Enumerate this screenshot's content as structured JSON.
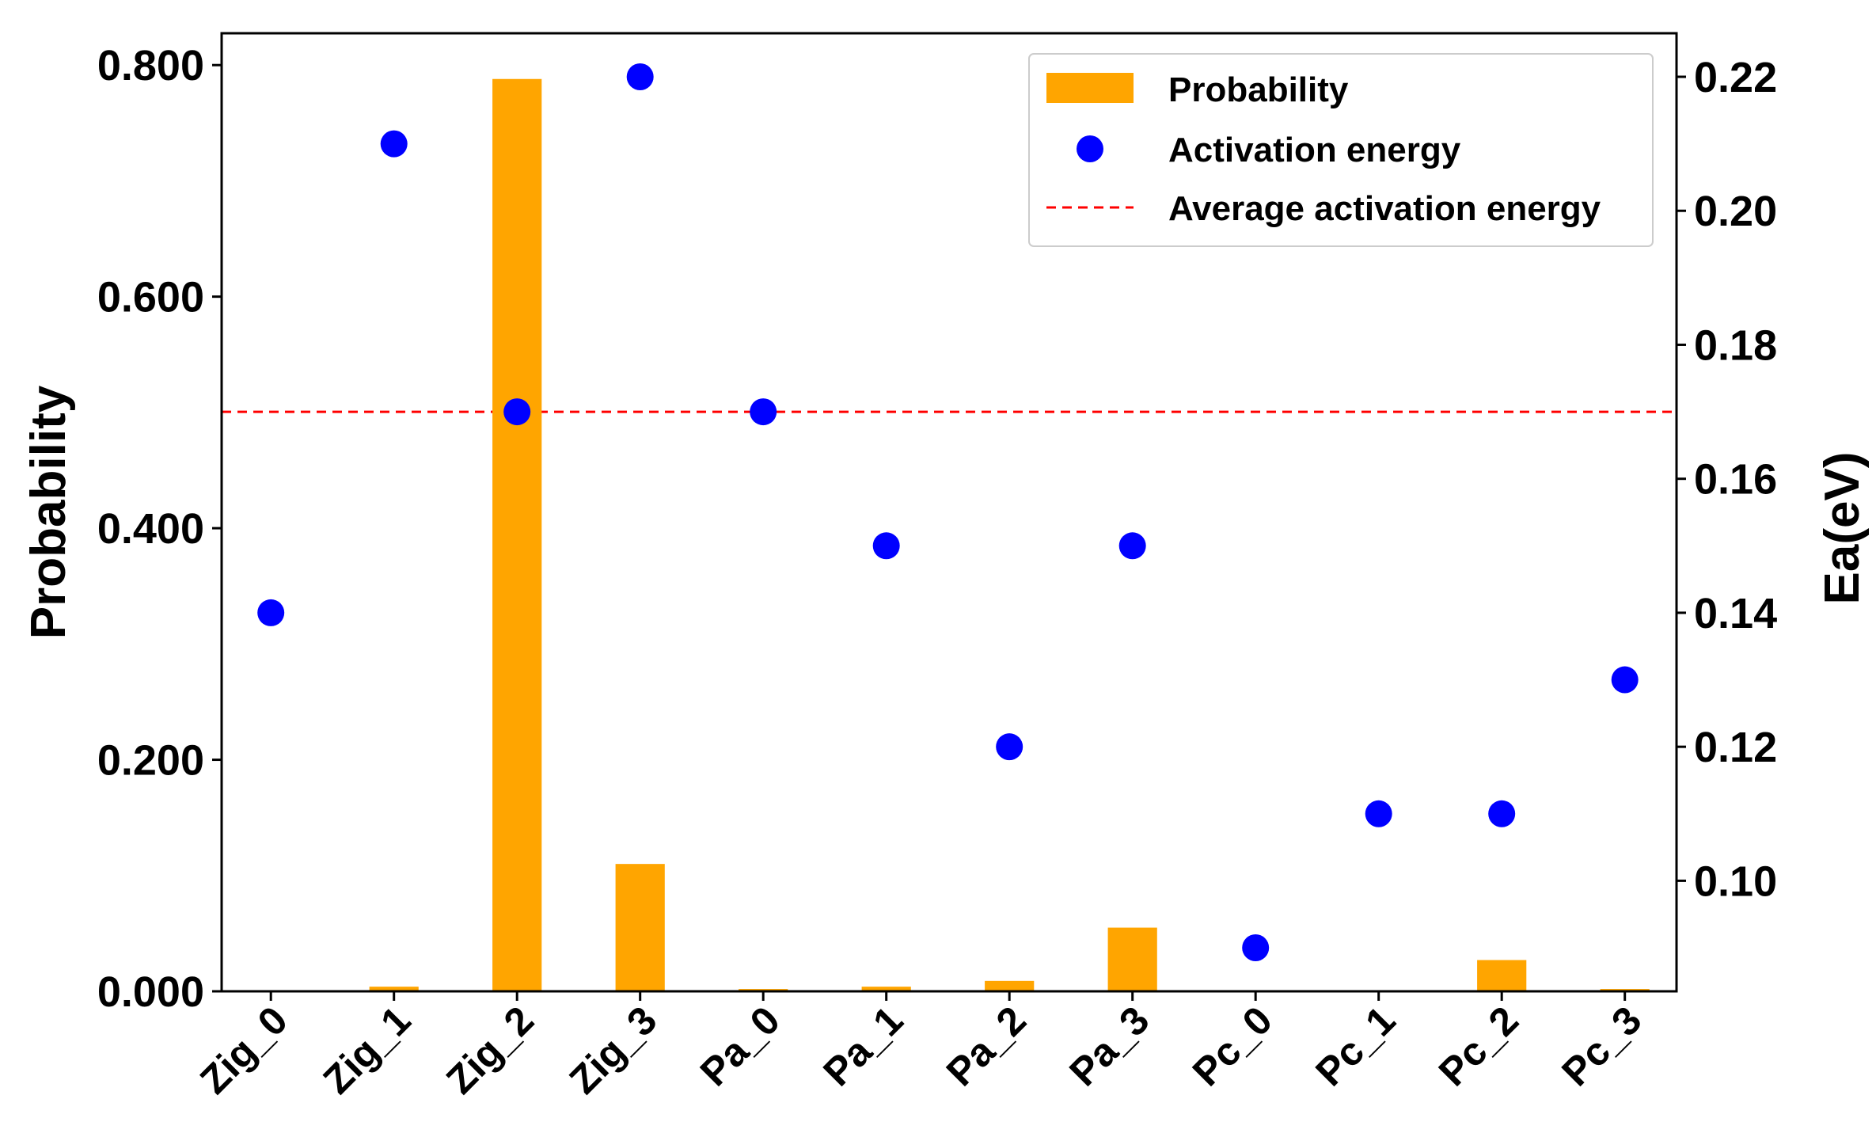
{
  "chart_data": {
    "type": "bar+scatter",
    "categories": [
      "Zig_0",
      "Zig_1",
      "Zig_2",
      "Zig_3",
      "Pa_0",
      "Pa_1",
      "Pa_2",
      "Pa_3",
      "Pc_0",
      "Pc_1",
      "Pc_2",
      "Pc_3"
    ],
    "series": [
      {
        "name": "Probability",
        "type": "bar",
        "axis": "left",
        "color": "#FFA500",
        "values": [
          0.0,
          0.004,
          0.788,
          0.11,
          0.002,
          0.004,
          0.009,
          0.055,
          0.0,
          0.0,
          0.027,
          0.002
        ]
      },
      {
        "name": "Activation energy",
        "type": "scatter",
        "axis": "right",
        "color": "#0000FF",
        "values": [
          0.14,
          0.21,
          0.17,
          0.22,
          0.17,
          0.15,
          0.12,
          0.15,
          0.09,
          0.11,
          0.11,
          0.13
        ]
      },
      {
        "name": "Average activation energy",
        "type": "hline",
        "axis": "right",
        "color": "#FF0000",
        "value": 0.17
      }
    ],
    "ylabel": "Probability",
    "y2label": "Ea(eV)",
    "ylim": [
      0,
      0.8275
    ],
    "y2lim": [
      0.0835,
      0.2265
    ],
    "yticks": [
      0.0,
      0.2,
      0.4,
      0.6,
      0.8
    ],
    "ytick_labels": [
      "0.000",
      "0.200",
      "0.400",
      "0.600",
      "0.800"
    ],
    "y2ticks": [
      0.1,
      0.12,
      0.14,
      0.16,
      0.18,
      0.2,
      0.22
    ],
    "y2tick_labels": [
      "0.10",
      "0.12",
      "0.14",
      "0.16",
      "0.18",
      "0.20",
      "0.22"
    ],
    "legend": {
      "placement": "top-right",
      "entries": [
        "Probability",
        "Activation energy",
        "Average activation energy"
      ]
    }
  }
}
